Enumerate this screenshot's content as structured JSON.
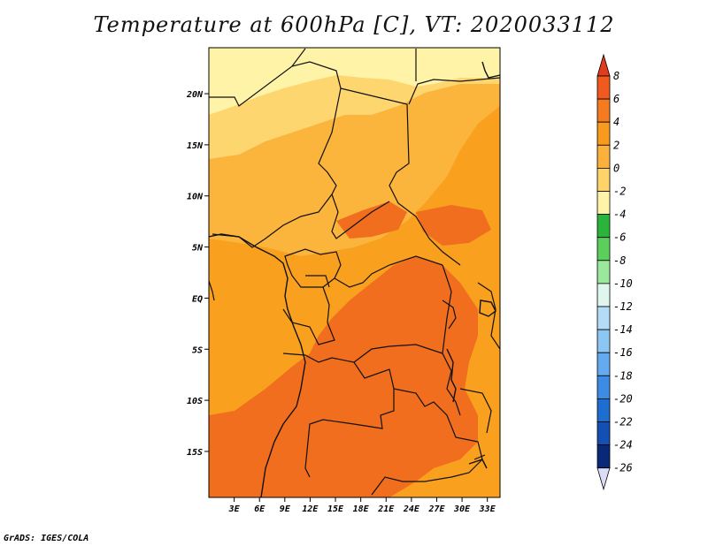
{
  "title": "Temperature at 600hPa [C], VT: 2020033112",
  "credit": "GrADS: IGES/COLA",
  "map": {
    "lon_range": [
      0,
      34.5
    ],
    "lat_range": [
      -19.5,
      24.5
    ],
    "lat_ticks": [
      {
        "value": 20,
        "label": "20N"
      },
      {
        "value": 15,
        "label": "15N"
      },
      {
        "value": 10,
        "label": "10N"
      },
      {
        "value": 5,
        "label": "5N"
      },
      {
        "value": 0,
        "label": "EQ"
      },
      {
        "value": -5,
        "label": "5S"
      },
      {
        "value": -10,
        "label": "10S"
      },
      {
        "value": -15,
        "label": "15S"
      }
    ],
    "lon_ticks": [
      {
        "value": 3,
        "label": "3E"
      },
      {
        "value": 6,
        "label": "6E"
      },
      {
        "value": 9,
        "label": "9E"
      },
      {
        "value": 12,
        "label": "12E"
      },
      {
        "value": 15,
        "label": "15E"
      },
      {
        "value": 18,
        "label": "18E"
      },
      {
        "value": 21,
        "label": "21E"
      },
      {
        "value": 24,
        "label": "24E"
      },
      {
        "value": 27,
        "label": "27E"
      },
      {
        "value": 30,
        "label": "30E"
      },
      {
        "value": 33,
        "label": "33E"
      }
    ]
  },
  "colorbar": {
    "levels": [
      "8",
      "6",
      "4",
      "2",
      "0",
      "-2",
      "-4",
      "-6",
      "-8",
      "-10",
      "-12",
      "-14",
      "-16",
      "-18",
      "-20",
      "-22",
      "-24",
      "-26"
    ],
    "colors": [
      "#e23c1e",
      "#f05a1e",
      "#f57b1e",
      "#f89a1e",
      "#fbb13c",
      "#fdd36a",
      "#fff3a8",
      "#2ab43c",
      "#5cce5c",
      "#9be79b",
      "#def6ee",
      "#b4dcf6",
      "#8cc6f2",
      "#64aaf0",
      "#3c8ce6",
      "#1e6ed2",
      "#1450b4",
      "#0a2878",
      "#dcdcf5"
    ]
  },
  "regions": {
    "warm_south": "#f06e1e",
    "mid": "#f9a01e",
    "light": "#fbb43c",
    "cool_north": "#fdd670",
    "cold_top": "#fff3a8"
  }
}
